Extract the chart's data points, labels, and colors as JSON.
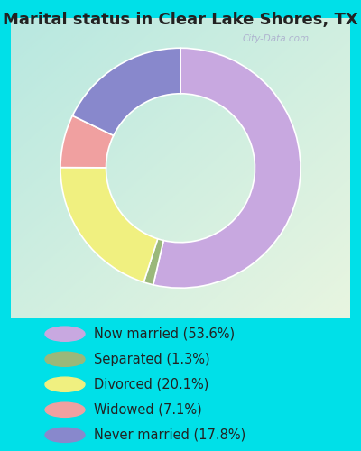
{
  "title": "Marital status in Clear Lake Shores, TX",
  "slices": [
    53.6,
    1.3,
    20.1,
    7.1,
    17.8
  ],
  "labels": [
    "Now married (53.6%)",
    "Separated (1.3%)",
    "Divorced (20.1%)",
    "Widowed (7.1%)",
    "Never married (17.8%)"
  ],
  "colors": [
    "#c8a8e0",
    "#9ab87a",
    "#f0f080",
    "#f0a0a0",
    "#8888cc"
  ],
  "start_angle": 90,
  "donut_width": 0.38,
  "bg_color_tl": "#b8e8e0",
  "bg_color_br": "#e8f5e0",
  "outer_bg": "#00e0e8",
  "title_fontsize": 13,
  "legend_fontsize": 10.5,
  "watermark": "City-Data.com"
}
